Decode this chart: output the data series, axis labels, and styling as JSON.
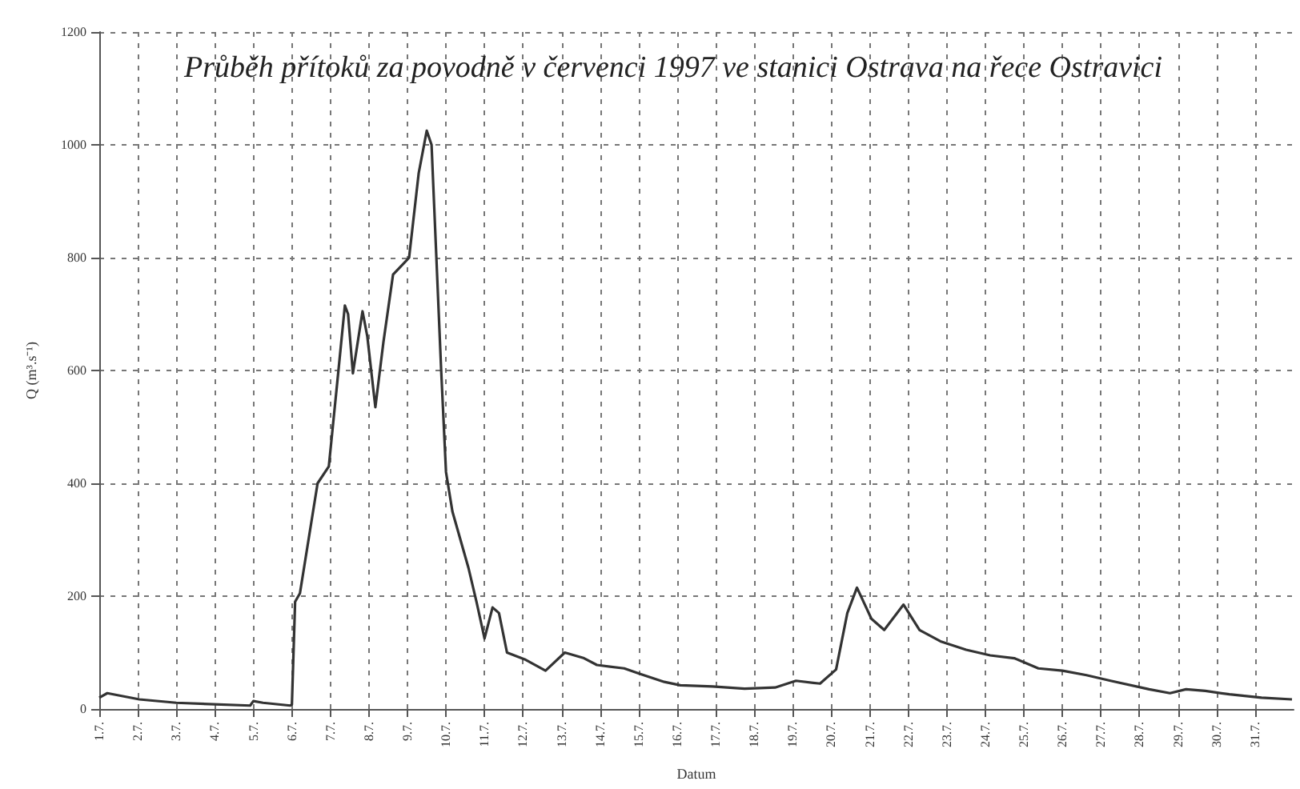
{
  "chart_data": {
    "type": "line",
    "title": "Průběh přítoků za povodně v červenci 1997 ve stanici Ostrava na řece Ostravici",
    "xlabel": "Datum",
    "ylabel": "Q (m³.s⁻¹)",
    "series": [
      {
        "color": "#333333",
        "x": [
          "1997-07-01T00:00",
          "1997-07-01T05:00",
          "1997-07-02T01:00",
          "1997-07-03T00:00",
          "1997-07-04T22:00",
          "1997-07-05T00:00",
          "1997-07-05T06:00",
          "1997-07-05T23:00",
          "1997-07-06T00:00",
          "1997-07-06T02:00",
          "1997-07-06T05:00",
          "1997-07-06T16:00",
          "1997-07-06T23:00",
          "1997-07-07T05:00",
          "1997-07-07T09:00",
          "1997-07-07T11:00",
          "1997-07-07T14:00",
          "1997-07-07T20:00",
          "1997-07-07T23:00",
          "1997-07-08T04:00",
          "1997-07-08T09:00",
          "1997-07-08T15:00",
          "1997-07-08T20:00",
          "1997-07-09T01:00",
          "1997-07-09T07:00",
          "1997-07-09T12:00",
          "1997-07-09T15:00",
          "1997-07-09T21:00",
          "1997-07-10T00:00",
          "1997-07-10T04:00",
          "1997-07-10T14:00",
          "1997-07-10T19:00",
          "1997-07-11T00:00",
          "1997-07-11T05:00",
          "1997-07-11T09:00",
          "1997-07-11T14:00",
          "1997-07-12T01:00",
          "1997-07-12T14:00",
          "1997-07-13T02:00",
          "1997-07-13T14:00",
          "1997-07-13T22:00",
          "1997-07-14T15:00",
          "1997-07-15T01:00",
          "1997-07-15T16:00",
          "1997-07-16T02:00",
          "1997-07-16T22:00",
          "1997-07-17T18:00",
          "1997-07-18T13:00",
          "1997-07-19T02:00",
          "1997-07-19T17:00",
          "1997-07-20T03:00",
          "1997-07-20T10:00",
          "1997-07-20T16:00",
          "1997-07-21T01:00",
          "1997-07-21T09:00",
          "1997-07-21T21:00",
          "1997-07-22T07:00",
          "1997-07-22T20:00",
          "1997-07-23T12:00",
          "1997-07-24T03:00",
          "1997-07-24T18:00",
          "1997-07-25T09:00",
          "1997-07-26T00:00",
          "1997-07-26T15:00",
          "1997-07-27T06:00",
          "1997-07-28T06:00",
          "1997-07-28T19:00",
          "1997-07-29T05:00",
          "1997-07-29T17:00",
          "1997-07-30T08:00",
          "1997-07-31T04:00",
          "1997-07-31T23:00"
        ],
        "values": [
          20,
          28,
          17,
          11,
          6,
          14,
          11,
          6,
          8,
          190,
          205,
          400,
          430,
          600,
          715,
          700,
          595,
          705,
          660,
          535,
          650,
          770,
          785,
          800,
          950,
          1025,
          1000,
          600,
          420,
          350,
          250,
          190,
          125,
          180,
          170,
          100,
          88,
          68,
          100,
          90,
          78,
          72,
          62,
          48,
          42,
          40,
          36,
          38,
          50,
          45,
          70,
          170,
          215,
          160,
          140,
          185,
          140,
          120,
          105,
          95,
          90,
          72,
          68,
          60,
          50,
          35,
          28,
          35,
          32,
          26,
          20,
          17
        ]
      }
    ],
    "xlim": [
      "1997-07-01",
      "1997-08-01"
    ],
    "xticks": [
      {
        "value": "1997-07-01",
        "label": "1.7."
      },
      {
        "value": "1997-07-02",
        "label": "2.7."
      },
      {
        "value": "1997-07-03",
        "label": "3.7."
      },
      {
        "value": "1997-07-04",
        "label": "4.7."
      },
      {
        "value": "1997-07-05",
        "label": "5.7."
      },
      {
        "value": "1997-07-06",
        "label": "6.7."
      },
      {
        "value": "1997-07-07",
        "label": "7.7."
      },
      {
        "value": "1997-07-08",
        "label": "8.7."
      },
      {
        "value": "1997-07-09",
        "label": "9.7."
      },
      {
        "value": "1997-07-10",
        "label": "10.7."
      },
      {
        "value": "1997-07-11",
        "label": "11.7."
      },
      {
        "value": "1997-07-12",
        "label": "12.7."
      },
      {
        "value": "1997-07-13",
        "label": "13.7."
      },
      {
        "value": "1997-07-14",
        "label": "14.7."
      },
      {
        "value": "1997-07-15",
        "label": "15.7."
      },
      {
        "value": "1997-07-16",
        "label": "16.7."
      },
      {
        "value": "1997-07-17",
        "label": "17.7."
      },
      {
        "value": "1997-07-18",
        "label": "18.7."
      },
      {
        "value": "1997-07-19",
        "label": "19.7."
      },
      {
        "value": "1997-07-20",
        "label": "20.7."
      },
      {
        "value": "1997-07-21",
        "label": "21.7."
      },
      {
        "value": "1997-07-22",
        "label": "22.7."
      },
      {
        "value": "1997-07-23",
        "label": "23.7."
      },
      {
        "value": "1997-07-24",
        "label": "24.7."
      },
      {
        "value": "1997-07-25",
        "label": "25.7."
      },
      {
        "value": "1997-07-26",
        "label": "26.7."
      },
      {
        "value": "1997-07-27",
        "label": "27.7."
      },
      {
        "value": "1997-07-28",
        "label": "28.7."
      },
      {
        "value": "1997-07-29",
        "label": "29.7."
      },
      {
        "value": "1997-07-30",
        "label": "30.7."
      },
      {
        "value": "1997-07-31",
        "label": "31.7."
      }
    ],
    "ylim": [
      0,
      1200
    ],
    "yticks": [
      0,
      200,
      400,
      600,
      800,
      1000,
      1200
    ],
    "grid": true,
    "marker": "none",
    "line_style": "solid"
  }
}
